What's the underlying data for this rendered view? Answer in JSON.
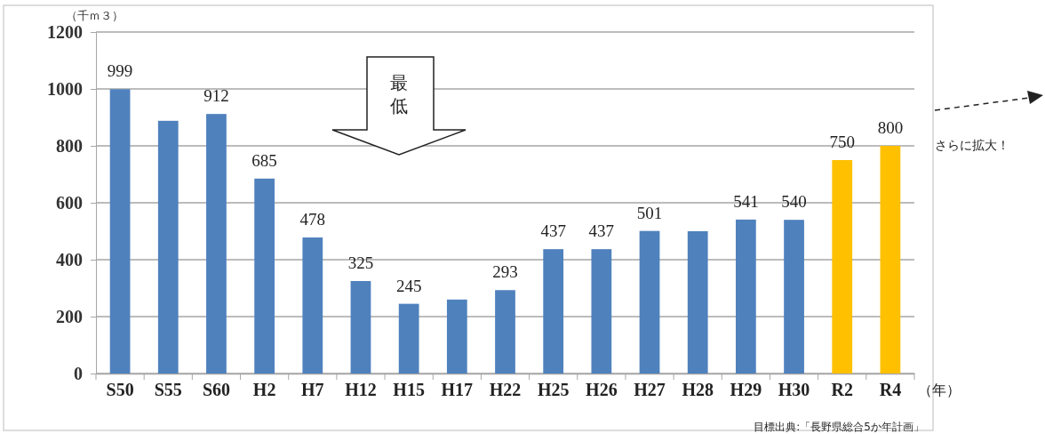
{
  "chart_data": {
    "type": "bar",
    "ylabel": "（千ｍ３）",
    "xlabel": "（年）",
    "categories": [
      "S50",
      "S55",
      "S60",
      "H2",
      "H7",
      "H12",
      "H15",
      "H17",
      "H22",
      "H25",
      "H26",
      "H27",
      "H28",
      "H29",
      "H30",
      "R2",
      "R4"
    ],
    "values": [
      999,
      888,
      912,
      685,
      478,
      325,
      245,
      260,
      293,
      437,
      437,
      501,
      500,
      541,
      540,
      750,
      800
    ],
    "value_labels": [
      "999",
      null,
      "912",
      "685",
      "478",
      "325",
      "245",
      null,
      "293",
      "437",
      "437",
      "501",
      null,
      "541",
      "540",
      "750",
      "800"
    ],
    "colors": [
      "#4f81bd",
      "#4f81bd",
      "#4f81bd",
      "#4f81bd",
      "#4f81bd",
      "#4f81bd",
      "#4f81bd",
      "#4f81bd",
      "#4f81bd",
      "#4f81bd",
      "#4f81bd",
      "#4f81bd",
      "#4f81bd",
      "#4f81bd",
      "#4f81bd",
      "#ffc000",
      "#ffc000"
    ],
    "ylim": [
      0,
      1200
    ],
    "yticks": [
      0,
      200,
      400,
      600,
      800,
      1000,
      1200
    ],
    "grid": "y",
    "annotations": [
      "最低",
      "さらに拡大！",
      "目標出典:「長野県総合5か年計画」"
    ]
  }
}
